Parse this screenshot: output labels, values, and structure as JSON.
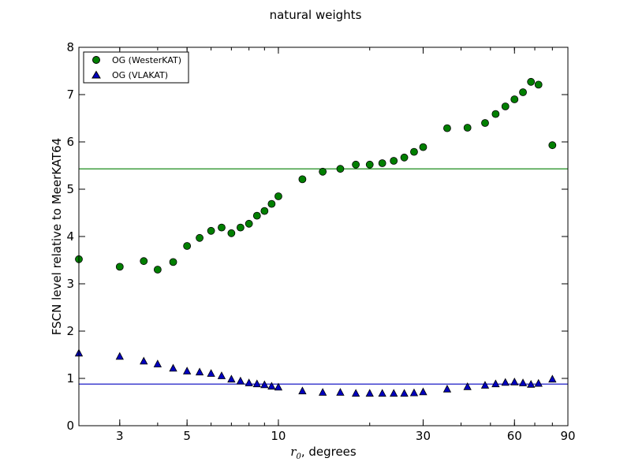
{
  "chart_data": {
    "type": "scatter",
    "title": "natural weights",
    "xlabel_var": "r",
    "xlabel_sub": "0",
    "xlabel_rest": ", degrees",
    "ylabel": "FSCN level relative to MeerKAT64",
    "xscale": "log",
    "xlim": [
      2.2,
      90
    ],
    "ylim": [
      0,
      8
    ],
    "xticks": [
      3,
      5,
      10,
      30,
      60,
      90
    ],
    "yticks": [
      0,
      1,
      2,
      3,
      4,
      5,
      6,
      7,
      8
    ],
    "grid": false,
    "legend_position": "upper-left",
    "series": [
      {
        "name": "OG (WesterKAT)",
        "marker": "circle",
        "color": "#007f00",
        "hline": 5.43,
        "x": [
          2.2,
          3.0,
          3.6,
          4.0,
          4.5,
          5.0,
          5.5,
          6.0,
          6.5,
          7.0,
          7.5,
          8.0,
          8.5,
          9.0,
          9.5,
          10.0,
          12,
          14,
          16,
          18,
          20,
          22,
          24,
          26,
          28,
          30,
          36,
          42,
          48,
          52,
          56,
          60,
          64,
          68,
          72,
          80
        ],
        "y": [
          3.52,
          3.36,
          3.48,
          3.3,
          3.46,
          3.8,
          3.97,
          4.12,
          4.19,
          4.07,
          4.19,
          4.27,
          4.44,
          4.54,
          4.69,
          4.85,
          5.21,
          5.37,
          5.43,
          5.52,
          5.52,
          5.55,
          5.6,
          5.67,
          5.79,
          5.89,
          6.29,
          6.3,
          6.4,
          6.59,
          6.75,
          6.9,
          7.05,
          7.27,
          7.21,
          5.93
        ]
      },
      {
        "name": "OG (VLAKAT)",
        "marker": "triangle",
        "color": "#0000bf",
        "hline": 0.88,
        "x": [
          2.2,
          3.0,
          3.6,
          4.0,
          4.5,
          5.0,
          5.5,
          6.0,
          6.5,
          7.0,
          7.5,
          8.0,
          8.5,
          9.0,
          9.5,
          10.0,
          12,
          14,
          16,
          18,
          20,
          22,
          24,
          26,
          28,
          30,
          36,
          42,
          48,
          52,
          56,
          60,
          64,
          68,
          72,
          80
        ],
        "y": [
          1.53,
          1.46,
          1.36,
          1.3,
          1.21,
          1.15,
          1.13,
          1.1,
          1.05,
          0.98,
          0.94,
          0.9,
          0.88,
          0.86,
          0.83,
          0.81,
          0.73,
          0.7,
          0.7,
          0.68,
          0.68,
          0.68,
          0.68,
          0.68,
          0.69,
          0.71,
          0.77,
          0.82,
          0.85,
          0.88,
          0.91,
          0.92,
          0.9,
          0.87,
          0.89,
          0.98
        ]
      }
    ]
  }
}
